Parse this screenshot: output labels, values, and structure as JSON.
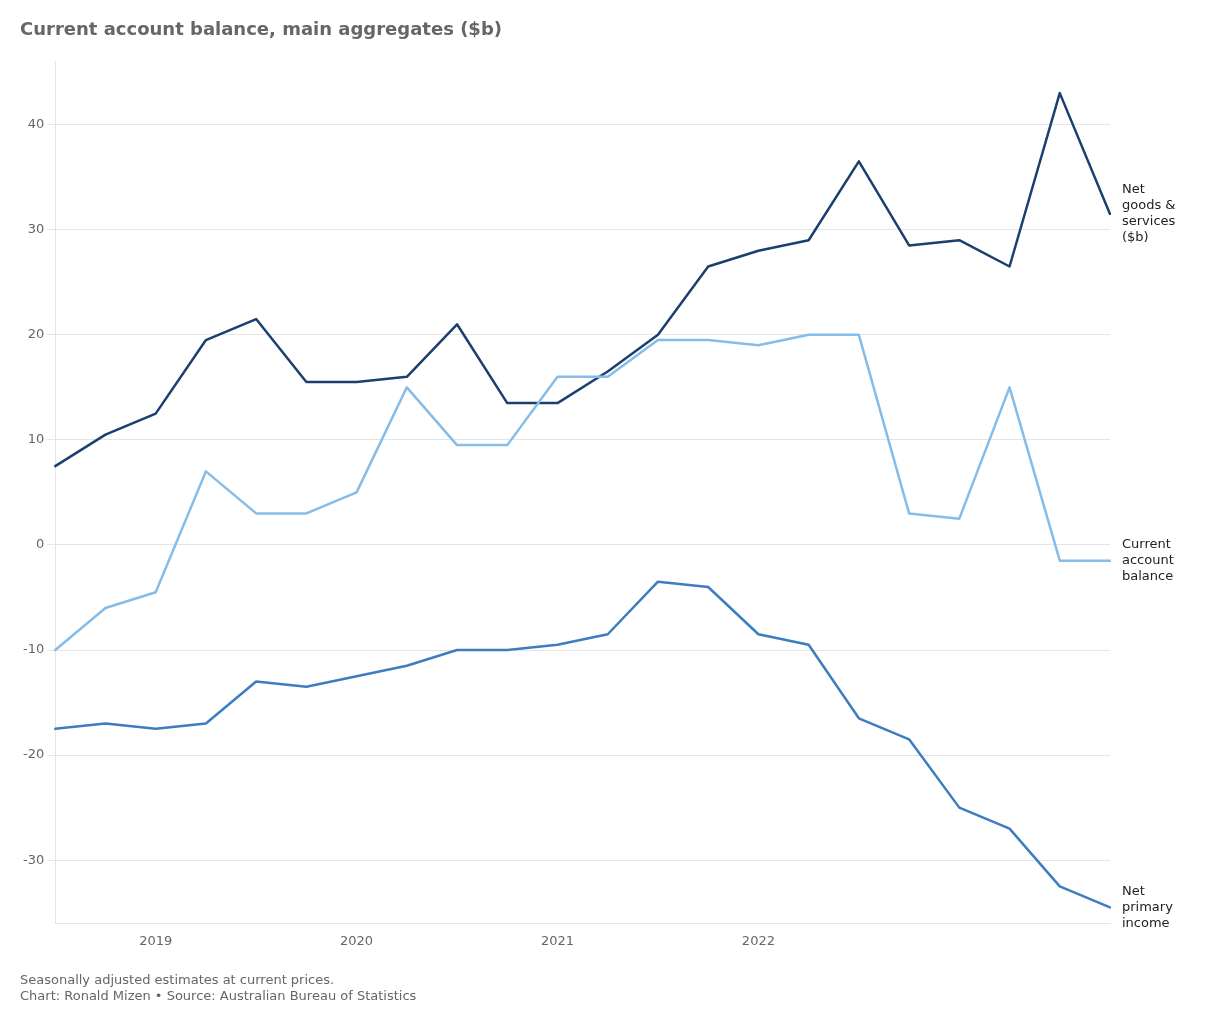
{
  "chart_data": {
    "type": "line",
    "title": "Current account balance, main aggregates ($b)",
    "footnotes": [
      "Seasonally adjusted estimates at current prices.",
      "Chart: Ronald Mizen • Source: Australian Bureau of Statistics"
    ],
    "categories": [
      null,
      null,
      "2019",
      null,
      null,
      null,
      "2020",
      null,
      null,
      null,
      "2021",
      null,
      null,
      null,
      "2022",
      null,
      null,
      null,
      null,
      null,
      null,
      null
    ],
    "series": [
      {
        "name": "Current\naccount\nbalance",
        "color": "#85bce8",
        "values": [
          -10.0,
          -6.0,
          -4.5,
          7.0,
          3.0,
          3.0,
          5.0,
          15.0,
          9.5,
          9.5,
          16.0,
          16.0,
          19.5,
          19.5,
          19.0,
          20.0,
          20.0,
          3.0,
          2.5,
          15.0,
          -1.5,
          -1.5
        ]
      },
      {
        "name": "Net\nprimary\nincome",
        "color": "#3d7dbf",
        "values": [
          -17.5,
          -17.0,
          -17.5,
          -17.0,
          -13.0,
          -13.5,
          -12.5,
          -11.5,
          -10.0,
          -10.0,
          -9.5,
          -8.5,
          -3.5,
          -4.0,
          -8.5,
          -9.5,
          -16.5,
          -18.5,
          -25.0,
          -27.0,
          -32.5,
          -34.5
        ]
      },
      {
        "name": "Net\ngoods &\nservices\n($b)",
        "color": "#1b3f6e",
        "values": [
          7.5,
          10.5,
          12.5,
          19.5,
          21.5,
          15.5,
          15.5,
          16.0,
          21.0,
          13.5,
          13.5,
          16.5,
          20.0,
          26.5,
          28.0,
          29.0,
          36.5,
          28.5,
          29.0,
          26.5,
          43.0,
          31.5
        ]
      }
    ],
    "ylim": [
      -36,
      46
    ],
    "yticks": [
      -30,
      -20,
      -10,
      0,
      10,
      20,
      30,
      40
    ],
    "grid": "y",
    "legend": false
  }
}
